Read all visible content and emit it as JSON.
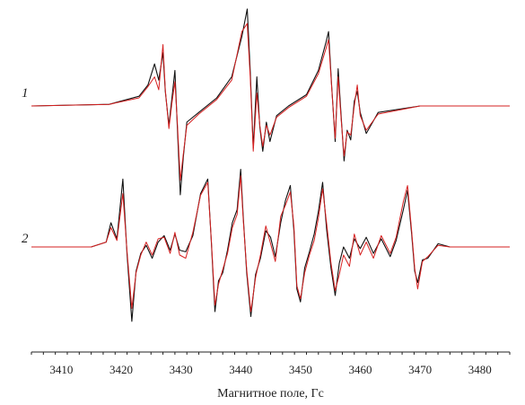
{
  "chart_data": {
    "type": "line",
    "xlabel": "Магнитное поле, Гс",
    "ylabel": "",
    "xlim": [
      3405,
      3485
    ],
    "x_ticks": [
      3410,
      3420,
      3430,
      3440,
      3450,
      3460,
      3470,
      3480
    ],
    "legend": "none",
    "grid": false,
    "y_axis_shown": false,
    "curve_labels": [
      "1",
      "2"
    ],
    "colors": {
      "experimental": "#111111",
      "simulated": "#d62020"
    },
    "series": [
      {
        "curve": "1",
        "baseline": 0,
        "lines": [
          {
            "kind": "experimental",
            "color": "#111111",
            "x": [
              3405.0,
              3418.0,
              3423.0,
              3424.5,
              3425.6,
              3426.3,
              3427.0,
              3427.4,
              3428.0,
              3428.5,
              3429.0,
              3429.4,
              3429.9,
              3430.4,
              3431.0,
              3433.0,
              3436.0,
              3438.5,
              3440.2,
              3441.1,
              3441.6,
              3442.1,
              3442.7,
              3443.2,
              3443.7,
              3444.3,
              3444.9,
              3446.0,
              3448.0,
              3451.0,
              3453.0,
              3454.3,
              3454.7,
              3455.2,
              3455.8,
              3456.3,
              3456.8,
              3457.3,
              3457.8,
              3458.4,
              3459.0,
              3459.5,
              3460.0,
              3461.0,
              3463.0,
              3470.0,
              3485.0
            ],
            "y": [
              0.0,
              0.1,
              0.6,
              1.3,
              2.6,
              1.6,
              3.3,
              0.9,
              -1.2,
              0.5,
              2.2,
              -1.3,
              -5.5,
              -3.2,
              -1.0,
              -0.4,
              0.5,
              1.8,
              4.3,
              6.0,
              2.2,
              -2.6,
              1.8,
              -1.3,
              -2.8,
              -1.0,
              -2.2,
              -0.6,
              0.0,
              0.7,
              2.2,
              4.0,
              4.6,
              1.3,
              -2.2,
              2.3,
              -0.6,
              -3.4,
              -1.5,
              -2.1,
              0.3,
              0.9,
              -0.4,
              -1.7,
              -0.4,
              0.0,
              0.0
            ]
          },
          {
            "kind": "simulated",
            "color": "#d62020",
            "x": [
              3405.0,
              3418.0,
              3423.0,
              3424.5,
              3425.6,
              3426.3,
              3427.0,
              3427.4,
              3428.0,
              3428.5,
              3429.0,
              3429.4,
              3429.9,
              3430.4,
              3431.0,
              3433.0,
              3436.0,
              3438.5,
              3440.2,
              3441.1,
              3441.6,
              3442.1,
              3442.7,
              3443.2,
              3443.7,
              3444.3,
              3444.9,
              3446.0,
              3448.0,
              3451.0,
              3453.0,
              3454.3,
              3454.7,
              3455.2,
              3455.8,
              3456.3,
              3456.8,
              3457.3,
              3457.8,
              3458.4,
              3459.0,
              3459.5,
              3460.0,
              3461.0,
              3463.0,
              3470.0,
              3485.0
            ],
            "y": [
              0.0,
              0.1,
              0.5,
              1.2,
              1.8,
              1.0,
              3.8,
              1.0,
              -1.4,
              0.2,
              1.5,
              -1.0,
              -4.6,
              -3.0,
              -1.2,
              -0.5,
              0.4,
              1.6,
              4.6,
              5.1,
              1.8,
              -2.8,
              0.8,
              -1.2,
              -2.5,
              -1.2,
              -1.8,
              -0.7,
              -0.1,
              0.6,
              2.0,
              3.6,
              4.1,
              1.2,
              -2.0,
              1.8,
              -0.8,
              -3.1,
              -1.6,
              -1.8,
              0.0,
              1.3,
              -0.6,
              -1.5,
              -0.5,
              0.0,
              0.0
            ]
          }
        ]
      },
      {
        "curve": "2",
        "baseline": 0,
        "lines": [
          {
            "kind": "experimental",
            "color": "#111111",
            "x": [
              3405.0,
              3415.0,
              3417.5,
              3418.3,
              3419.3,
              3420.3,
              3421.0,
              3421.8,
              3422.5,
              3423.3,
              3424.2,
              3425.2,
              3426.2,
              3427.2,
              3428.2,
              3429.0,
              3429.8,
              3430.8,
              3432.0,
              3433.3,
              3434.5,
              3435.1,
              3435.7,
              3436.3,
              3437.0,
              3437.8,
              3438.6,
              3439.4,
              3440.0,
              3440.4,
              3441.0,
              3441.7,
              3442.5,
              3443.3,
              3444.2,
              3445.0,
              3445.8,
              3446.7,
              3447.5,
              3448.3,
              3448.9,
              3449.4,
              3450.0,
              3450.7,
              3451.5,
              3452.3,
              3453.0,
              3453.7,
              3454.4,
              3455.1,
              3455.8,
              3456.5,
              3457.2,
              3458.2,
              3459.0,
              3460.0,
              3461.0,
              3462.2,
              3463.5,
              3465.0,
              3466.0,
              3467.2,
              3467.9,
              3468.6,
              3469.1,
              3469.6,
              3470.4,
              3471.3,
              3473.0,
              3475.0,
              3485.0
            ],
            "y": [
              0.0,
              0.0,
              0.3,
              1.5,
              0.5,
              4.2,
              -0.5,
              -4.6,
              -1.5,
              -0.4,
              0.1,
              -0.7,
              0.3,
              0.7,
              -0.2,
              0.8,
              -0.2,
              -0.3,
              0.7,
              3.3,
              4.2,
              0.3,
              -4.0,
              -2.1,
              -1.6,
              -0.2,
              1.5,
              2.3,
              4.8,
              2.0,
              -1.6,
              -4.3,
              -1.7,
              -0.7,
              1.0,
              0.6,
              -0.6,
              1.5,
              2.9,
              3.8,
              1.0,
              -2.6,
              -3.4,
              -1.3,
              -0.3,
              0.8,
              2.2,
              4.0,
              1.0,
              -1.3,
              -3.0,
              -1.0,
              0.0,
              -0.7,
              0.5,
              -0.1,
              0.6,
              -0.4,
              0.5,
              -0.6,
              0.4,
              2.3,
              3.5,
              0.8,
              -1.5,
              -2.2,
              -0.8,
              -0.7,
              0.2,
              0.0,
              0.0
            ]
          },
          {
            "kind": "simulated",
            "color": "#d62020",
            "x": [
              3405.0,
              3415.0,
              3417.5,
              3418.3,
              3419.3,
              3420.3,
              3421.0,
              3421.8,
              3422.5,
              3423.3,
              3424.2,
              3425.2,
              3426.2,
              3427.2,
              3428.2,
              3429.0,
              3429.8,
              3430.8,
              3432.0,
              3433.3,
              3434.5,
              3435.1,
              3435.7,
              3436.3,
              3437.0,
              3437.8,
              3438.6,
              3439.4,
              3440.0,
              3440.4,
              3441.0,
              3441.7,
              3442.5,
              3443.3,
              3444.2,
              3445.0,
              3445.8,
              3446.7,
              3447.5,
              3448.3,
              3448.9,
              3449.4,
              3450.0,
              3450.7,
              3451.5,
              3452.3,
              3453.0,
              3453.7,
              3454.4,
              3455.1,
              3455.8,
              3456.5,
              3457.2,
              3458.2,
              3459.0,
              3460.0,
              3461.0,
              3462.2,
              3463.5,
              3465.0,
              3466.0,
              3467.2,
              3467.9,
              3468.6,
              3469.1,
              3469.6,
              3470.4,
              3471.3,
              3473.0,
              3475.0,
              3485.0
            ],
            "y": [
              0.0,
              0.0,
              0.3,
              1.2,
              0.4,
              3.3,
              -0.3,
              -3.8,
              -1.6,
              -0.5,
              0.3,
              -0.5,
              0.5,
              0.6,
              -0.4,
              0.9,
              -0.5,
              -0.7,
              0.9,
              3.2,
              4.0,
              0.4,
              -3.6,
              -2.3,
              -1.4,
              -0.4,
              1.2,
              2.0,
              4.4,
              1.8,
              -1.4,
              -4.0,
              -1.9,
              -0.5,
              1.3,
              0.2,
              -0.9,
              1.9,
              2.6,
              3.4,
              1.3,
              -2.4,
              -3.2,
              -1.6,
              -0.5,
              0.4,
              1.8,
              3.6,
              1.4,
              -1.0,
              -2.7,
              -1.7,
              -0.5,
              -1.2,
              0.8,
              -0.5,
              0.3,
              -0.7,
              0.7,
              -0.4,
              0.6,
              2.8,
              3.8,
              1.0,
              -1.3,
              -2.6,
              -0.9,
              -0.6,
              0.1,
              0.0,
              0.0
            ]
          }
        ]
      }
    ]
  }
}
